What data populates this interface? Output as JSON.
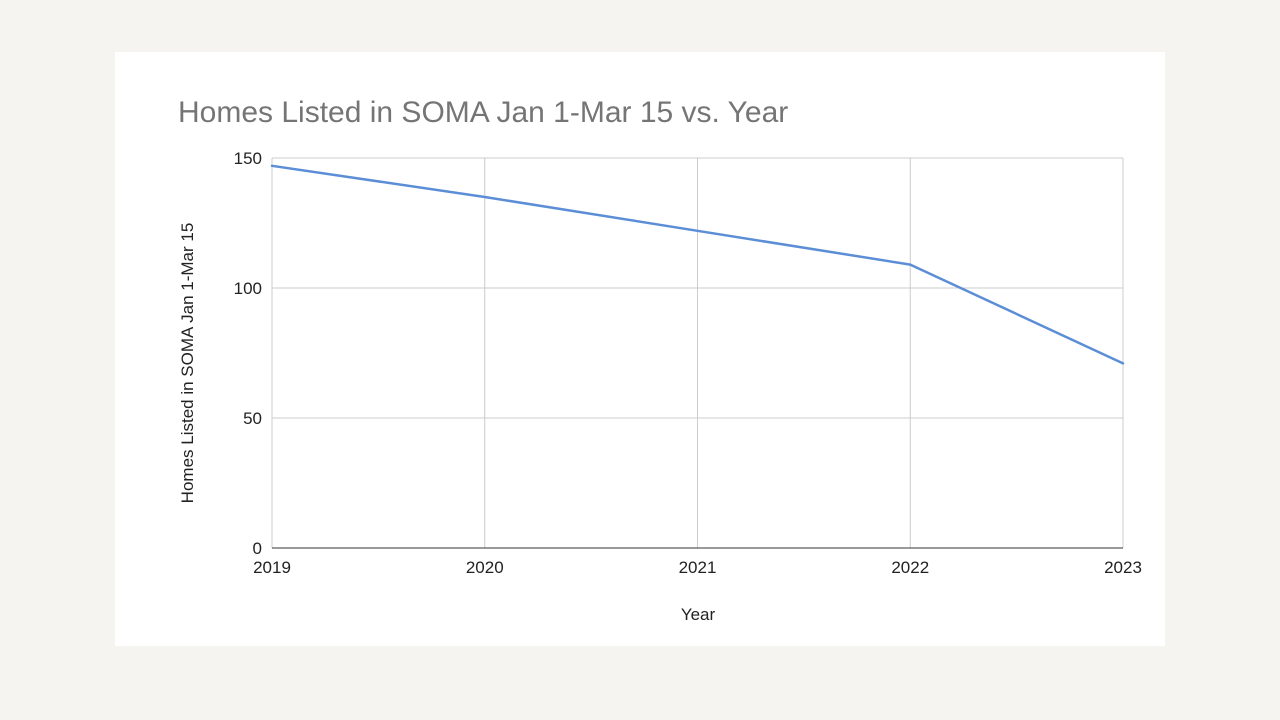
{
  "chart_data": {
    "type": "line",
    "title": "Homes Listed in SOMA Jan 1-Mar 15 vs. Year",
    "xlabel": "Year",
    "ylabel": "Homes Listed in SOMA Jan 1-Mar 15",
    "x": [
      "2019",
      "2020",
      "2021",
      "2022",
      "2023"
    ],
    "series": [
      {
        "values": [
          147,
          135,
          122,
          109,
          71
        ],
        "color": "#5b8ed6"
      }
    ],
    "ylim": [
      0,
      150
    ],
    "yticks": [
      0,
      50,
      100,
      150
    ],
    "grid": true,
    "legend": "none"
  },
  "colors": {
    "background": "#f5f4f1",
    "card": "#ffffff",
    "title": "#757575",
    "grid": "#cccccc"
  }
}
